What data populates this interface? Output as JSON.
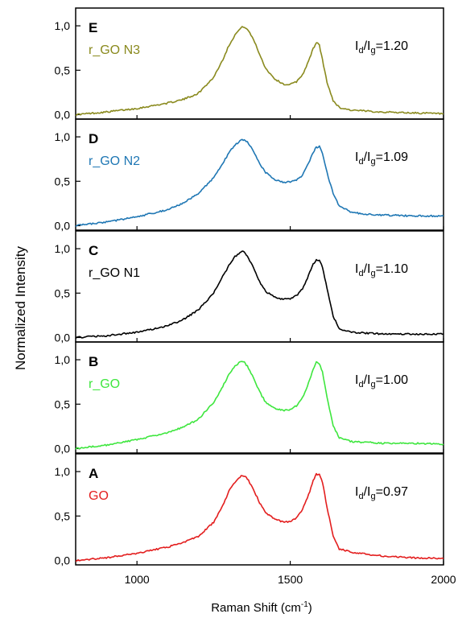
{
  "chart_data": {
    "type": "line",
    "xlabel": "Raman Shift (cm",
    "xlabel_sup": "-1",
    "xlabel_end": ")",
    "ylabel": "Normalized Intensity",
    "xlim": [
      800,
      2000
    ],
    "x_ticks": [
      "1000",
      "1500",
      "2000"
    ],
    "x_tick_values": [
      1000,
      1500,
      2000
    ],
    "y_ticks": [
      "0,0",
      "0,5",
      "1,0"
    ],
    "y_tick_values": [
      0,
      0.5,
      1.0
    ],
    "panels": [
      {
        "letter": "E",
        "name": "r_GO N3",
        "color": "#8a8a1e",
        "ratio_d": "d",
        "ratio_g": "g",
        "ratio_value": "=1.20",
        "ylim": [
          -0.05,
          1.2
        ],
        "x": [
          800,
          900,
          1000,
          1100,
          1150,
          1200,
          1250,
          1280,
          1300,
          1320,
          1340,
          1350,
          1360,
          1380,
          1400,
          1420,
          1450,
          1480,
          1500,
          1520,
          1540,
          1560,
          1575,
          1585,
          1590,
          1595,
          1605,
          1620,
          1640,
          1660,
          1700,
          1750,
          1800,
          1900,
          2000
        ],
        "y": [
          0.0,
          0.03,
          0.07,
          0.13,
          0.17,
          0.24,
          0.42,
          0.62,
          0.78,
          0.9,
          0.98,
          0.99,
          0.96,
          0.85,
          0.68,
          0.52,
          0.4,
          0.34,
          0.34,
          0.37,
          0.45,
          0.6,
          0.75,
          0.8,
          0.81,
          0.78,
          0.62,
          0.36,
          0.16,
          0.08,
          0.05,
          0.04,
          0.03,
          0.02,
          0.01
        ]
      },
      {
        "letter": "D",
        "name": "r_GO N2",
        "color": "#1f77b4",
        "ratio_d": "d",
        "ratio_g": "g",
        "ratio_value": "=1.09",
        "ylim": [
          -0.05,
          1.2
        ],
        "x": [
          800,
          900,
          1000,
          1100,
          1150,
          1200,
          1250,
          1280,
          1300,
          1320,
          1340,
          1350,
          1360,
          1380,
          1400,
          1420,
          1450,
          1480,
          1500,
          1520,
          1540,
          1560,
          1575,
          1585,
          1595,
          1605,
          1620,
          1640,
          1660,
          1700,
          1750,
          1800,
          1900,
          2000
        ],
        "y": [
          0.0,
          0.04,
          0.1,
          0.18,
          0.25,
          0.36,
          0.54,
          0.7,
          0.82,
          0.91,
          0.96,
          0.97,
          0.94,
          0.84,
          0.7,
          0.6,
          0.52,
          0.49,
          0.49,
          0.51,
          0.57,
          0.7,
          0.83,
          0.88,
          0.89,
          0.82,
          0.6,
          0.36,
          0.22,
          0.15,
          0.13,
          0.12,
          0.11,
          0.11
        ]
      },
      {
        "letter": "C",
        "name": "r_GO N1",
        "color": "#000000",
        "ratio_d": "d",
        "ratio_g": "g",
        "ratio_value": "=1.10",
        "ylim": [
          -0.05,
          1.2
        ],
        "x": [
          800,
          900,
          1000,
          1100,
          1150,
          1200,
          1250,
          1280,
          1300,
          1320,
          1340,
          1350,
          1360,
          1380,
          1400,
          1420,
          1450,
          1480,
          1500,
          1520,
          1540,
          1560,
          1575,
          1585,
          1595,
          1605,
          1620,
          1640,
          1660,
          1700,
          1750,
          1800,
          1900,
          2000
        ],
        "y": [
          0.0,
          0.02,
          0.06,
          0.13,
          0.2,
          0.31,
          0.5,
          0.69,
          0.81,
          0.91,
          0.97,
          0.96,
          0.92,
          0.79,
          0.63,
          0.52,
          0.45,
          0.43,
          0.44,
          0.47,
          0.55,
          0.7,
          0.83,
          0.87,
          0.87,
          0.79,
          0.55,
          0.24,
          0.1,
          0.06,
          0.05,
          0.04,
          0.04,
          0.04
        ]
      },
      {
        "letter": "B",
        "name": "r_GO",
        "color": "#3ee63e",
        "ratio_d": "d",
        "ratio_g": "g",
        "ratio_value": "=1.00",
        "ylim": [
          -0.05,
          1.2
        ],
        "x": [
          800,
          900,
          1000,
          1100,
          1150,
          1200,
          1250,
          1280,
          1300,
          1320,
          1340,
          1350,
          1360,
          1380,
          1400,
          1420,
          1450,
          1480,
          1500,
          1520,
          1540,
          1560,
          1575,
          1585,
          1595,
          1605,
          1620,
          1640,
          1660,
          1700,
          1750,
          1800,
          1900,
          2000
        ],
        "y": [
          0.0,
          0.04,
          0.1,
          0.18,
          0.24,
          0.33,
          0.52,
          0.7,
          0.84,
          0.93,
          0.98,
          0.97,
          0.93,
          0.8,
          0.64,
          0.52,
          0.45,
          0.43,
          0.44,
          0.48,
          0.57,
          0.74,
          0.9,
          0.97,
          0.96,
          0.86,
          0.58,
          0.26,
          0.12,
          0.08,
          0.07,
          0.06,
          0.06,
          0.05
        ]
      },
      {
        "letter": "A",
        "name": "GO",
        "color": "#e31e1e",
        "ratio_d": "d",
        "ratio_g": "g",
        "ratio_value": "=0.97",
        "ylim": [
          -0.05,
          1.2
        ],
        "x": [
          800,
          900,
          1000,
          1100,
          1150,
          1200,
          1250,
          1280,
          1300,
          1320,
          1340,
          1350,
          1360,
          1380,
          1400,
          1420,
          1450,
          1480,
          1500,
          1520,
          1540,
          1560,
          1575,
          1585,
          1595,
          1605,
          1620,
          1640,
          1660,
          1700,
          1750,
          1800,
          1900,
          2000
        ],
        "y": [
          0.0,
          0.03,
          0.08,
          0.15,
          0.2,
          0.27,
          0.43,
          0.62,
          0.78,
          0.88,
          0.95,
          0.95,
          0.92,
          0.8,
          0.65,
          0.54,
          0.46,
          0.43,
          0.44,
          0.48,
          0.57,
          0.74,
          0.9,
          0.97,
          0.97,
          0.88,
          0.6,
          0.28,
          0.13,
          0.09,
          0.07,
          0.05,
          0.03,
          0.02
        ]
      }
    ]
  }
}
